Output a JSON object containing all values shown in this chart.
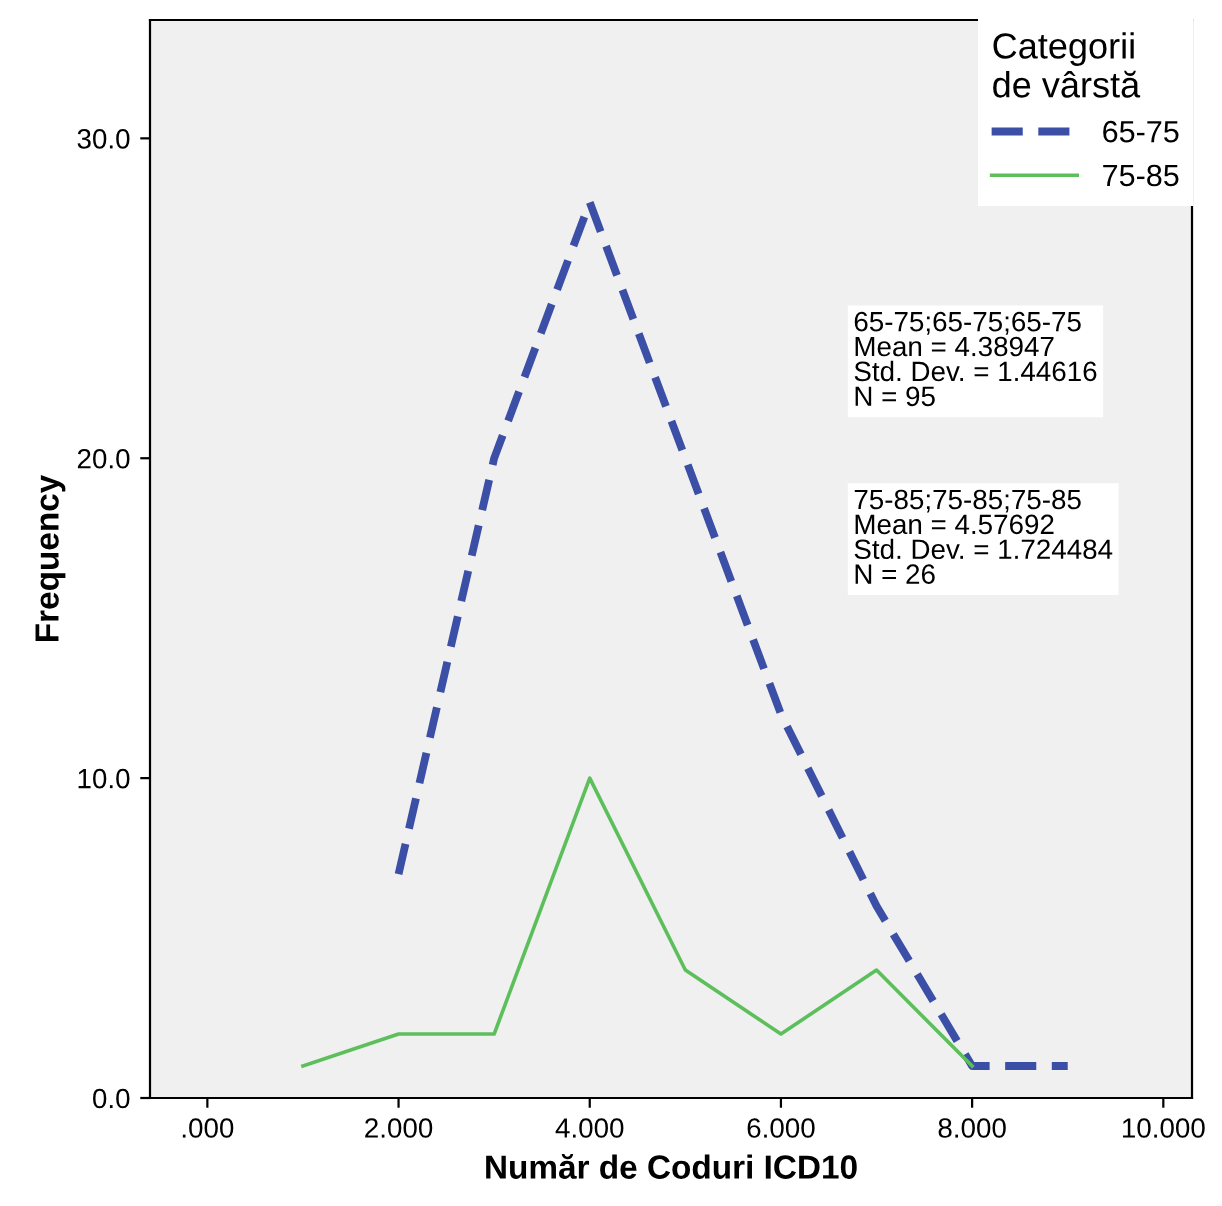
{
  "chart_data": {
    "type": "line",
    "xlabel": "Număr de Coduri ICD10",
    "ylabel": "Frequency",
    "legend_title": "Categorii\nde vârstă",
    "x": [
      1,
      2,
      3,
      4,
      5,
      6,
      7,
      8,
      9
    ],
    "series": [
      {
        "name": "65-75",
        "color": "#3c4fa6",
        "line_style": "dashed",
        "values": [
          null,
          7,
          20,
          28,
          20,
          12,
          6,
          1,
          1
        ]
      },
      {
        "name": "75-85",
        "color": "#5cbf5c",
        "line_style": "solid",
        "values": [
          1,
          2,
          2,
          10,
          4,
          2,
          4,
          1,
          null
        ]
      }
    ],
    "xlim": [
      -0.6,
      10.3
    ],
    "ylim": [
      0,
      33.7
    ],
    "xticks": [
      {
        "value": 0,
        "label": ".000"
      },
      {
        "value": 2,
        "label": "2.000"
      },
      {
        "value": 4,
        "label": "4.000"
      },
      {
        "value": 6,
        "label": "6.000"
      },
      {
        "value": 8,
        "label": "8.000"
      },
      {
        "value": 10,
        "label": "10.000"
      }
    ],
    "yticks": [
      {
        "value": 0,
        "label": "0.0"
      },
      {
        "value": 10,
        "label": "10.0"
      },
      {
        "value": 20,
        "label": "20.0"
      },
      {
        "value": 30,
        "label": "30.0"
      }
    ],
    "annotations": [
      "65-75;65-75;65-75\nMean = 4.38947\nStd. Dev. = 1.44616\nN = 95",
      "75-85;75-85;75-85\nMean = 4.57692\nStd. Dev. = 1.724484\nN = 26"
    ],
    "grid": false,
    "legend": "top right",
    "marker": "none"
  }
}
